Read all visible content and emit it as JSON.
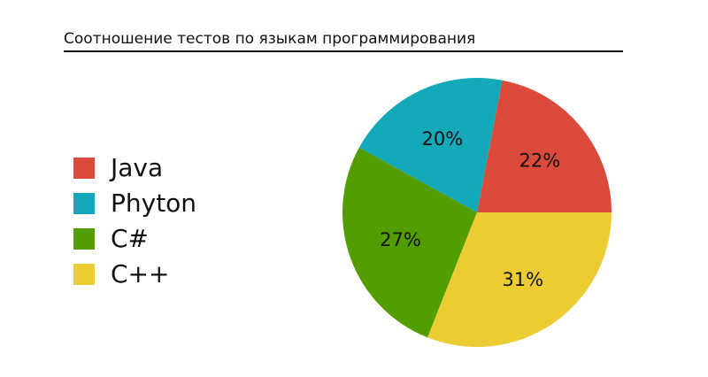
{
  "chart_data": {
    "type": "pie",
    "title": "Соотношение тестов по языкам программирования",
    "legend_position": "left",
    "slices": [
      {
        "label": "Java",
        "value": 22,
        "display": "22%",
        "color": "#DC4A3C"
      },
      {
        "label": "Phyton",
        "value": 20,
        "display": "20%",
        "color": "#14A9B8"
      },
      {
        "label": "C#",
        "value": 27,
        "display": "27%",
        "color": "#529D00"
      },
      {
        "label": "C++",
        "value": 31,
        "display": "31%",
        "color": "#EBCD33"
      }
    ]
  }
}
